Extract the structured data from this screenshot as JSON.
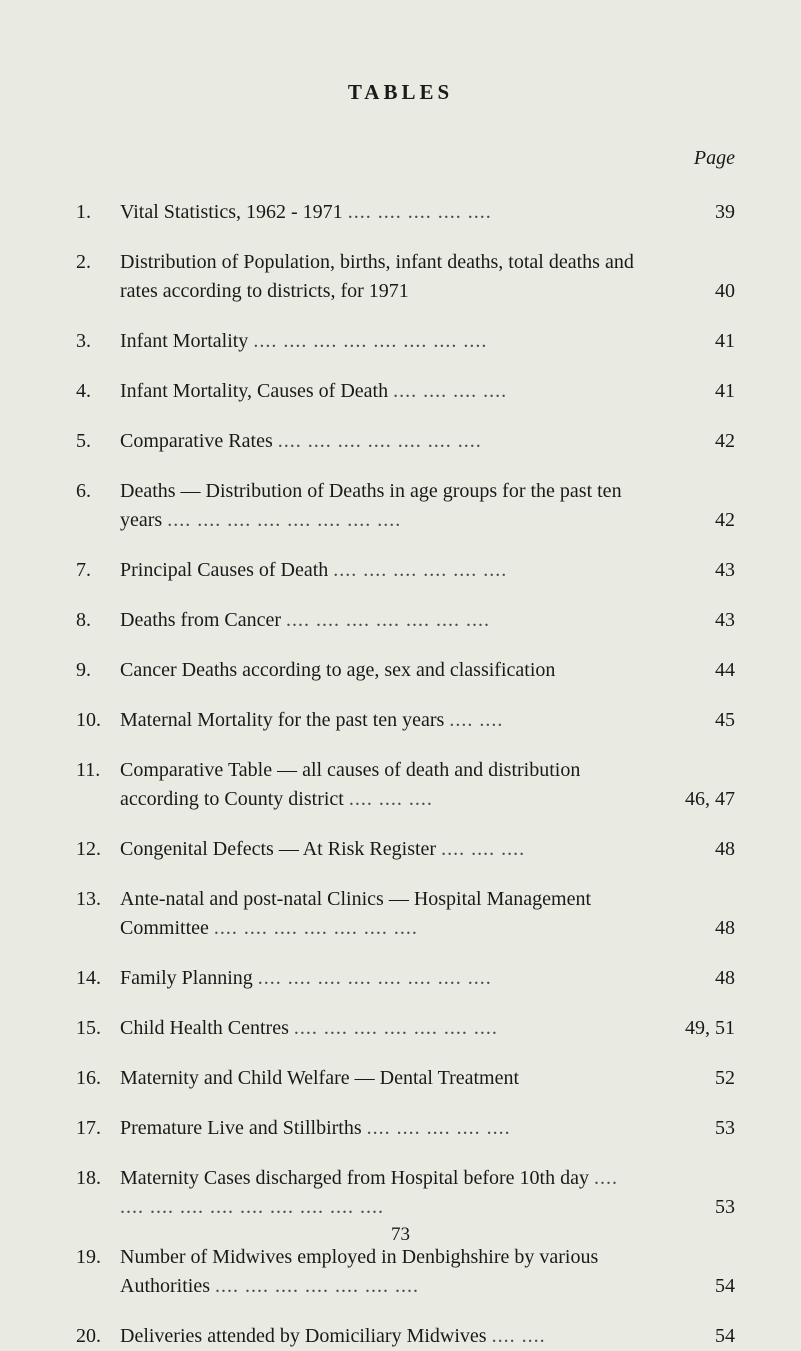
{
  "heading": "TABLES",
  "pageLabel": "Page",
  "footerPage": "73",
  "colors": {
    "background": "#e9eae2",
    "text": "#1a1a1a",
    "dots": "#4a4a4a"
  },
  "entries": [
    {
      "num": "1.",
      "lines": [
        "Vital Statistics, 1962 - 1971"
      ],
      "dots": "....  ....  ....  ....  ....",
      "page": "39"
    },
    {
      "num": "2.",
      "lines": [
        "Distribution of Population, births, infant deaths, total deaths and rates according to districts, for 1971"
      ],
      "dots": "",
      "page": "40"
    },
    {
      "num": "3.",
      "lines": [
        "Infant Mortality"
      ],
      "dots": "....  ....  ....  ....  ....  ....  ....  ....",
      "page": "41"
    },
    {
      "num": "4.",
      "lines": [
        "Infant Mortality, Causes of Death"
      ],
      "dots": "....  ....  ....  ....",
      "page": "41"
    },
    {
      "num": "5.",
      "lines": [
        "Comparative Rates"
      ],
      "dots": "....  ....  ....  ....  ....  ....  ....",
      "page": "42"
    },
    {
      "num": "6.",
      "lines": [
        "Deaths — Distribution of Deaths in age groups for the past ten years"
      ],
      "dots": "....  ....  ....  ....  ....  ....  ....  ....",
      "page": "42",
      "contIndent": true
    },
    {
      "num": "7.",
      "lines": [
        "Principal Causes of Death"
      ],
      "dots": "....  ....  ....  ....  ....  ....",
      "page": "43"
    },
    {
      "num": "8.",
      "lines": [
        "Deaths from Cancer"
      ],
      "dots": "....  ....  ....  ....  ....  ....  ....",
      "page": "43"
    },
    {
      "num": "9.",
      "lines": [
        "Cancer Deaths according to age, sex and classification"
      ],
      "dots": "",
      "page": "44"
    },
    {
      "num": "10.",
      "lines": [
        "Maternal Mortality for the past ten years"
      ],
      "dots": "....  ....",
      "page": "45"
    },
    {
      "num": "11.",
      "lines": [
        "Comparative Table — all causes of death and distribution according to County district"
      ],
      "dots": "....  ....  ....",
      "page": "46, 47",
      "contIndent": true
    },
    {
      "num": "12.",
      "lines": [
        "Congenital Defects — At Risk Register"
      ],
      "dots": "....  ....  ....",
      "page": "48"
    },
    {
      "num": "13.",
      "lines": [
        "Ante-natal and post-natal Clinics — Hospital Management Committee"
      ],
      "dots": "....  ....  ....  ....  ....  ....  ....",
      "page": "48",
      "contIndent": true
    },
    {
      "num": "14.",
      "lines": [
        "Family Planning"
      ],
      "dots": "....  ....  ....  ....  ....  ....  ....  ....",
      "page": "48"
    },
    {
      "num": "15.",
      "lines": [
        "Child Health Centres"
      ],
      "dots": "....  ....  ....  ....  ....  ....  ....",
      "page": "49, 51"
    },
    {
      "num": "16.",
      "lines": [
        "Maternity and Child Welfare  —  Dental Treatment"
      ],
      "dots": "",
      "page": "52"
    },
    {
      "num": "17.",
      "lines": [
        "Premature Live and Stillbirths"
      ],
      "dots": "....  ....  ....  ....  ....",
      "page": "53"
    },
    {
      "num": "18.",
      "lines": [
        "Maternity Cases discharged from Hospital before 10th day"
      ],
      "dots": "....  ....  ....  ....  ....  ....  ....  ....  ....  ....",
      "page": "53",
      "contIndent": true
    },
    {
      "num": "19.",
      "lines": [
        "Number of Midwives employed in Denbighshire by various Authorities"
      ],
      "dots": "....  ....  ....  ....  ....  ....  ....",
      "page": "54",
      "contIndent": true
    },
    {
      "num": "20.",
      "lines": [
        "Deliveries attended by Domiciliary Midwives"
      ],
      "dots": "....  ....",
      "page": "54"
    }
  ]
}
